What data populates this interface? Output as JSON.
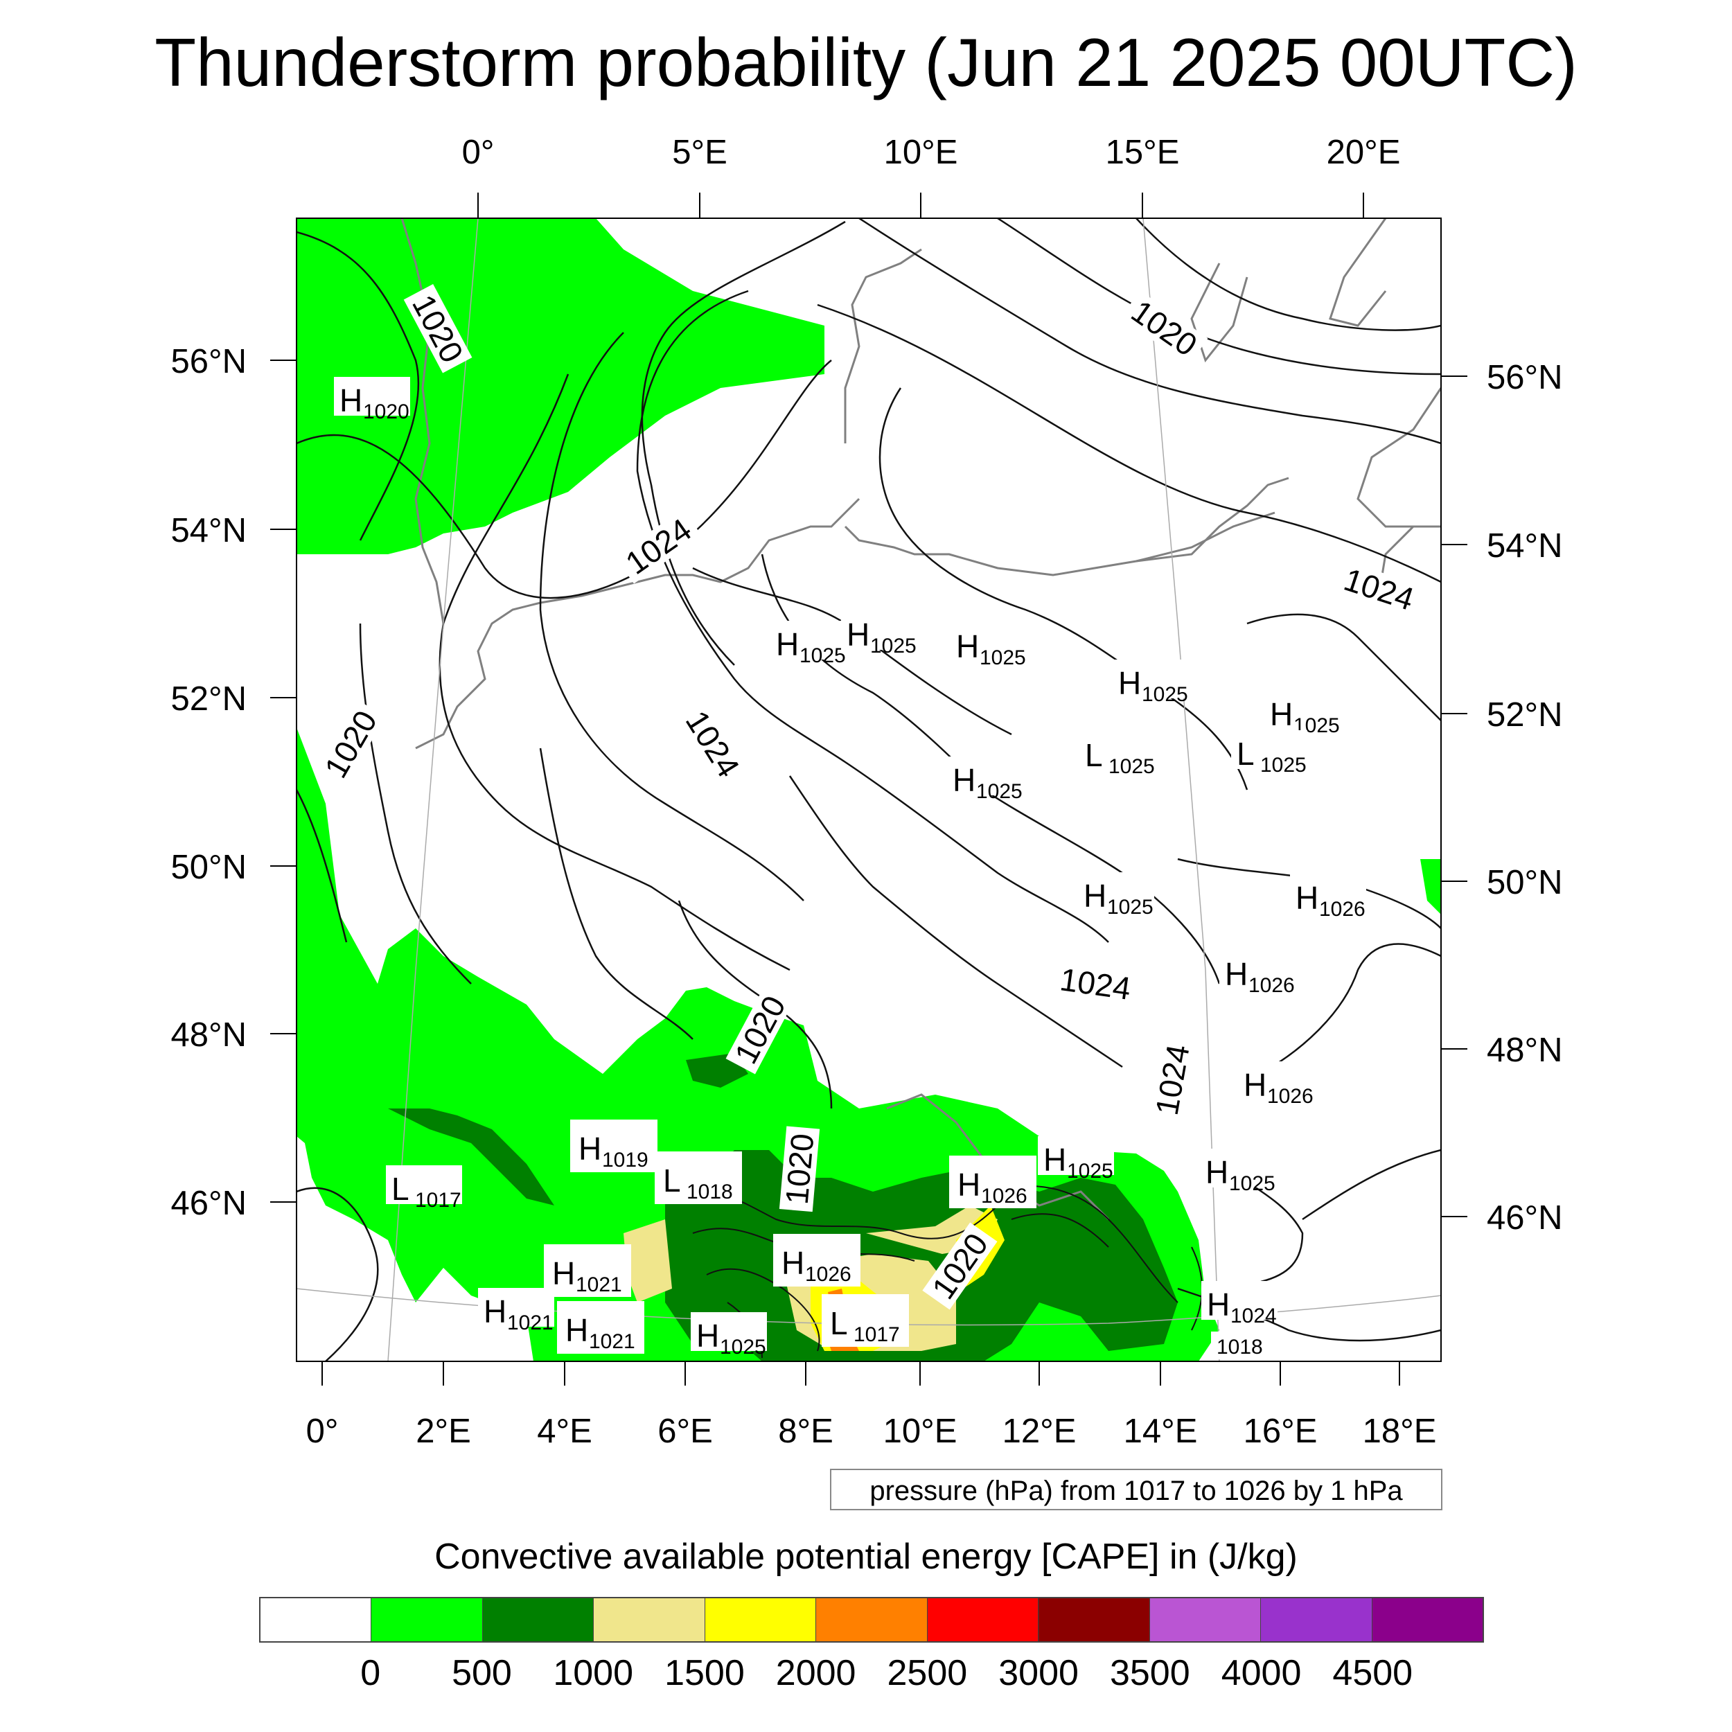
{
  "title": "Thunderstorm probability (Jun 21 2025 00UTC)",
  "top_lon_labels": [
    "0°",
    "5°E",
    "10°E",
    "15°E",
    "20°E"
  ],
  "bottom_lon_labels": [
    "0°",
    "2°E",
    "4°E",
    "6°E",
    "8°E",
    "10°E",
    "12°E",
    "14°E",
    "16°E",
    "18°E"
  ],
  "left_lat_labels": [
    "56°N",
    "54°N",
    "52°N",
    "50°N",
    "48°N",
    "46°N"
  ],
  "right_lat_labels": [
    "56°N",
    "54°N",
    "52°N",
    "50°N",
    "48°N",
    "46°N"
  ],
  "contour_labels": [
    "1020",
    "1024",
    "1020",
    "1024",
    "1020",
    "1024",
    "1024",
    "1020",
    "1020",
    "1020",
    "1024"
  ],
  "pressure_centers": [
    {
      "letter": "H",
      "value": "1020"
    },
    {
      "letter": "H",
      "value": "1025"
    },
    {
      "letter": "H",
      "value": "1025"
    },
    {
      "letter": "H",
      "value": "1025"
    },
    {
      "letter": "H",
      "value": "1025"
    },
    {
      "letter": "H",
      "value": "1025"
    },
    {
      "letter": "L",
      "value": "1025"
    },
    {
      "letter": "L",
      "value": "1025"
    },
    {
      "letter": "H",
      "value": "1025"
    },
    {
      "letter": "H",
      "value": "1025"
    },
    {
      "letter": "H",
      "value": "1026"
    },
    {
      "letter": "H",
      "value": "1026"
    },
    {
      "letter": "H",
      "value": "1026"
    },
    {
      "letter": "H",
      "value": "1019"
    },
    {
      "letter": "L",
      "value": "1017"
    },
    {
      "letter": "L",
      "value": "1018"
    },
    {
      "letter": "H",
      "value": "1025"
    },
    {
      "letter": "H",
      "value": "1026"
    },
    {
      "letter": "H",
      "value": "1025"
    },
    {
      "letter": "H",
      "value": "1021"
    },
    {
      "letter": "H",
      "value": "1026"
    },
    {
      "letter": "H",
      "value": "1021"
    },
    {
      "letter": "H",
      "value": "1021"
    },
    {
      "letter": "H",
      "value": "1025"
    },
    {
      "letter": "L",
      "value": "1017"
    },
    {
      "letter": "H",
      "value": "1024"
    },
    {
      "letter": "",
      "value": "1018"
    }
  ],
  "pressure_note": "pressure (hPa) from 1017 to 1026 by 1 hPa",
  "colorbar": {
    "title": "Convective available potential energy [CAPE] in (J/kg)",
    "colors": [
      "#ffffff",
      "#00ff00",
      "#008000",
      "#f0e68c",
      "#ffff00",
      "#ff8000",
      "#ff0000",
      "#8b0000",
      "#ba55d3",
      "#9932cc",
      "#8b008b"
    ],
    "ticks": [
      "0",
      "500",
      "1000",
      "1500",
      "2000",
      "2500",
      "3000",
      "3500",
      "4000",
      "4500"
    ]
  }
}
